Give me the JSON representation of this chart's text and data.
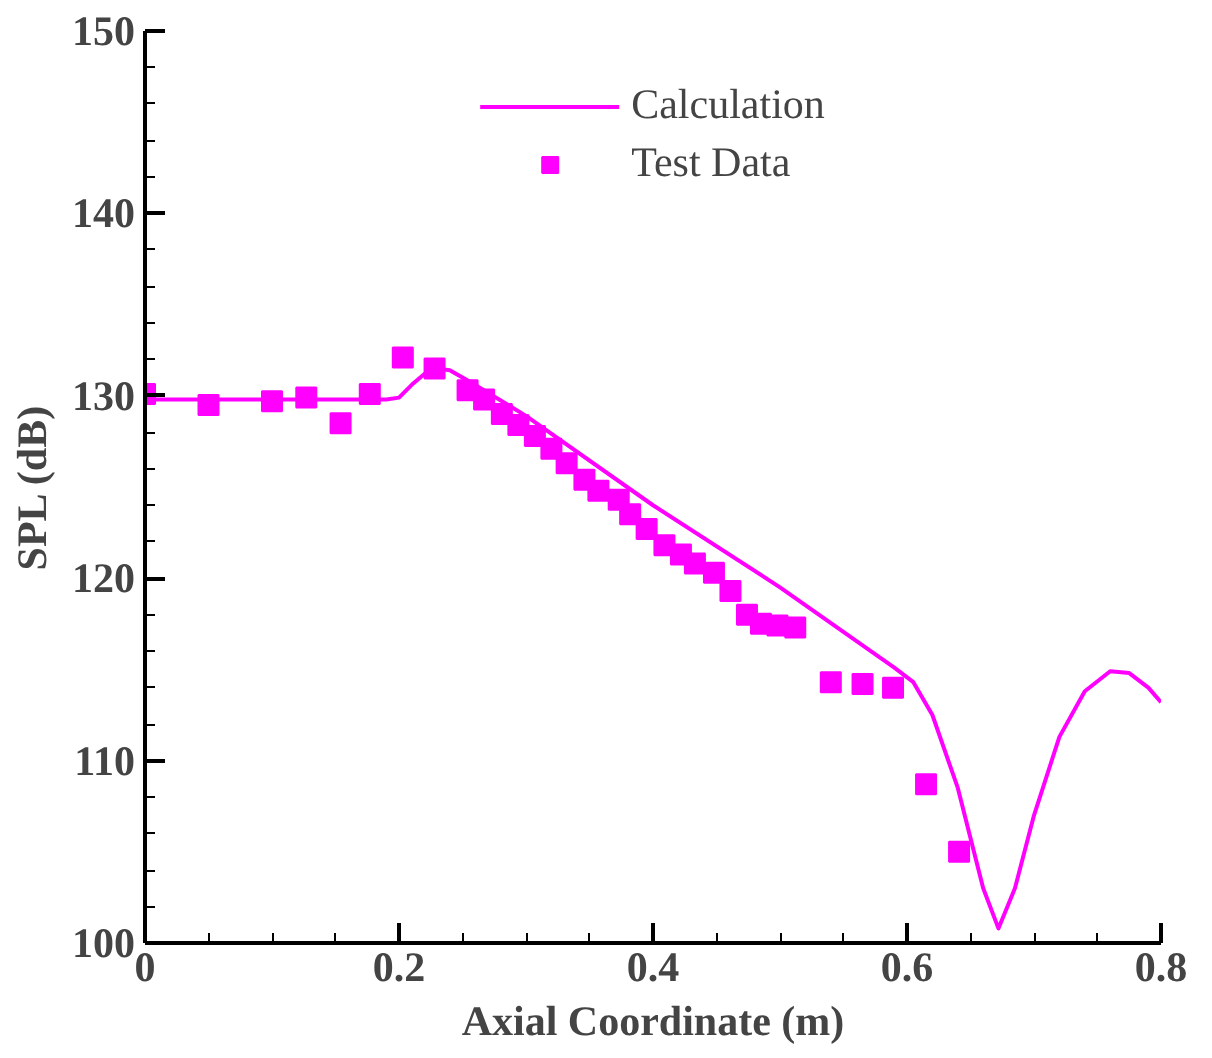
{
  "chart_data": {
    "type": "line",
    "xlabel": "Axial Coordinate (m)",
    "ylabel": "SPL (dB)",
    "xlim": [
      0,
      0.8
    ],
    "ylim": [
      100,
      150
    ],
    "xticks": [
      0,
      0.2,
      0.4,
      0.6,
      0.8
    ],
    "yticks": [
      100,
      110,
      120,
      130,
      140,
      150
    ],
    "grid": false,
    "legend": "top",
    "series": [
      {
        "name": "Calculation",
        "color": "#ff00ff",
        "marker": "none",
        "x": [
          0,
          0.1,
          0.19,
          0.2,
          0.21,
          0.22,
          0.23,
          0.24,
          0.26,
          0.3,
          0.4,
          0.5,
          0.59,
          0.605,
          0.62,
          0.64,
          0.66,
          0.672,
          0.685,
          0.7,
          0.72,
          0.74,
          0.76,
          0.775,
          0.79,
          0.8
        ],
        "values": [
          129.8,
          129.8,
          129.8,
          129.9,
          130.6,
          131.2,
          131.5,
          131.4,
          130.6,
          128.9,
          124.0,
          119.5,
          115.1,
          114.3,
          112.5,
          108.5,
          103.0,
          100.8,
          103.0,
          107.0,
          111.3,
          113.8,
          114.9,
          114.8,
          114.0,
          113.2
        ]
      },
      {
        "name": "Test Data",
        "type": "scatter",
        "color": "#ff00ff",
        "marker": "square",
        "x": [
          0,
          0.05,
          0.1,
          0.127,
          0.154,
          0.177,
          0.203,
          0.228,
          0.254,
          0.267,
          0.281,
          0.294,
          0.307,
          0.32,
          0.332,
          0.346,
          0.357,
          0.373,
          0.382,
          0.395,
          0.409,
          0.422,
          0.433,
          0.448,
          0.461,
          0.474,
          0.485,
          0.498,
          0.512,
          0.54,
          0.565,
          0.589,
          0.615,
          0.641
        ],
        "values": [
          130.1,
          129.5,
          129.7,
          129.9,
          128.5,
          130.1,
          132.1,
          131.5,
          130.3,
          129.8,
          129.0,
          128.4,
          127.8,
          127.1,
          126.3,
          125.4,
          124.8,
          124.3,
          123.5,
          122.7,
          121.8,
          121.3,
          120.8,
          120.3,
          119.3,
          118.0,
          117.5,
          117.4,
          117.3,
          114.3,
          114.2,
          114.0,
          108.7,
          105.0
        ]
      }
    ]
  }
}
